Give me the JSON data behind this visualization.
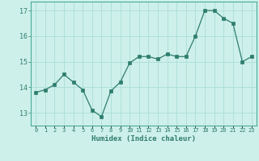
{
  "x": [
    0,
    1,
    2,
    3,
    4,
    5,
    6,
    7,
    8,
    9,
    10,
    11,
    12,
    13,
    14,
    15,
    16,
    17,
    18,
    19,
    20,
    21,
    22,
    23
  ],
  "y": [
    13.8,
    13.9,
    14.1,
    14.5,
    14.2,
    13.9,
    13.1,
    12.85,
    13.85,
    14.2,
    14.95,
    15.2,
    15.2,
    15.1,
    15.3,
    15.2,
    15.2,
    16.0,
    17.0,
    17.0,
    16.7,
    16.5,
    15.0,
    15.2
  ],
  "bg_color": "#cef0ea",
  "grid_color": "#aaddd6",
  "line_color": "#2e7d6e",
  "marker_color": "#2e7d6e",
  "xlabel": "Humidex (Indice chaleur)",
  "ylim": [
    12.5,
    17.35
  ],
  "yticks": [
    13,
    14,
    15,
    16,
    17
  ],
  "xticks": [
    0,
    1,
    2,
    3,
    4,
    5,
    6,
    7,
    8,
    9,
    10,
    11,
    12,
    13,
    14,
    15,
    16,
    17,
    18,
    19,
    20,
    21,
    22,
    23
  ],
  "xtick_labels": [
    "0",
    "1",
    "2",
    "3",
    "4",
    "5",
    "6",
    "7",
    "8",
    "9",
    "10",
    "11",
    "12",
    "13",
    "14",
    "15",
    "16",
    "17",
    "18",
    "19",
    "20",
    "21",
    "22",
    "23"
  ],
  "spine_color": "#4aaa99"
}
